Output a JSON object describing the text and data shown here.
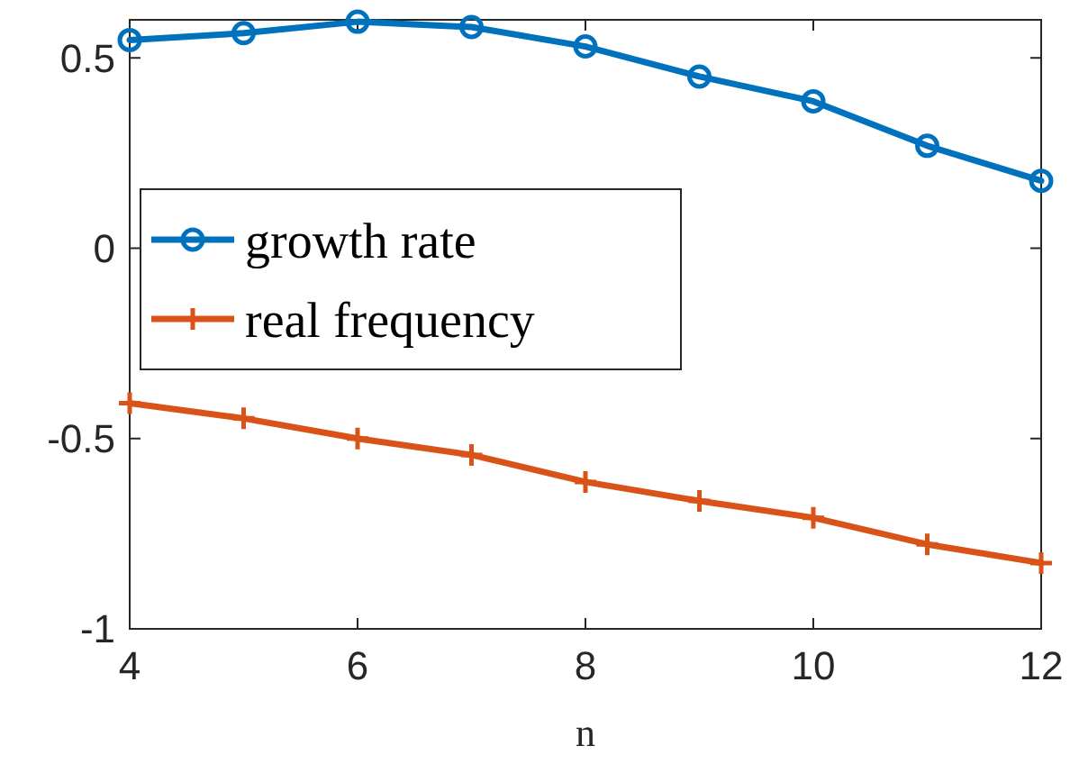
{
  "chart_data": {
    "type": "line",
    "xlabel": "n",
    "x": [
      4,
      5,
      6,
      7,
      8,
      9,
      10,
      11,
      12
    ],
    "xlim": [
      4,
      12
    ],
    "xticks": [
      4,
      6,
      8,
      10,
      12
    ],
    "ylim": [
      -1,
      0.6
    ],
    "yticks": [
      -1,
      -0.5,
      0,
      0.5
    ],
    "legend": "left",
    "grid": false,
    "series": [
      {
        "name": "growth rate",
        "color": "#0072bd",
        "marker": "circle",
        "values": [
          0.547,
          0.565,
          0.595,
          0.581,
          0.53,
          0.451,
          0.386,
          0.269,
          0.177
        ]
      },
      {
        "name": "real frequency",
        "color": "#d95319",
        "marker": "cross",
        "values": [
          -0.407,
          -0.447,
          -0.5,
          -0.543,
          -0.614,
          -0.664,
          -0.708,
          -0.778,
          -0.827
        ]
      }
    ]
  }
}
